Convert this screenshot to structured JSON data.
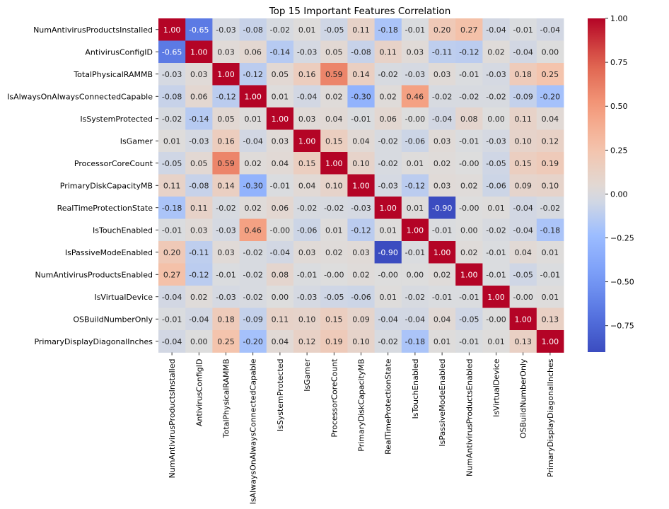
{
  "chart_data": {
    "type": "heatmap",
    "title": "Top 15 Important Features Correlation",
    "colormap": "coolwarm",
    "value_range": [
      -0.9,
      1.0
    ],
    "colorbar_ticks": [
      1.0,
      0.75,
      0.5,
      0.25,
      0.0,
      -0.25,
      -0.5,
      -0.75
    ],
    "colorbar_tick_labels": [
      "1.00",
      "0.75",
      "0.50",
      "0.25",
      "0.00",
      "−0.25",
      "−0.50",
      "−0.75"
    ],
    "labels": [
      "NumAntivirusProductsInstalled",
      "AntivirusConfigID",
      "TotalPhysicalRAMMB",
      "IsAlwaysOnAlwaysConnectedCapable",
      "IsSystemProtected",
      "IsGamer",
      "ProcessorCoreCount",
      "PrimaryDiskCapacityMB",
      "RealTimeProtectionState",
      "IsTouchEnabled",
      "IsPassiveModeEnabled",
      "NumAntivirusProductsEnabled",
      "IsVirtualDevice",
      "OSBuildNumberOnly",
      "PrimaryDisplayDiagonalInches"
    ],
    "matrix": [
      [
        1.0,
        -0.65,
        -0.03,
        -0.08,
        -0.02,
        0.01,
        -0.05,
        0.11,
        -0.18,
        -0.01,
        0.2,
        0.27,
        -0.04,
        -0.01,
        -0.04
      ],
      [
        -0.65,
        1.0,
        0.03,
        0.06,
        -0.14,
        -0.03,
        0.05,
        -0.08,
        0.11,
        0.03,
        -0.11,
        -0.12,
        0.02,
        -0.04,
        0.0
      ],
      [
        -0.03,
        0.03,
        1.0,
        -0.12,
        0.05,
        0.16,
        0.59,
        0.14,
        -0.02,
        -0.03,
        0.03,
        -0.01,
        -0.03,
        0.18,
        0.25
      ],
      [
        -0.08,
        0.06,
        -0.12,
        1.0,
        0.01,
        -0.04,
        0.02,
        -0.3,
        0.02,
        0.46,
        -0.02,
        -0.02,
        -0.02,
        -0.09,
        -0.2
      ],
      [
        -0.02,
        -0.14,
        0.05,
        0.01,
        1.0,
        0.03,
        0.04,
        -0.01,
        0.06,
        -0.0,
        -0.04,
        0.08,
        0.0,
        0.11,
        0.04
      ],
      [
        0.01,
        -0.03,
        0.16,
        -0.04,
        0.03,
        1.0,
        0.15,
        0.04,
        -0.02,
        -0.06,
        0.03,
        -0.01,
        -0.03,
        0.1,
        0.12
      ],
      [
        -0.05,
        0.05,
        0.59,
        0.02,
        0.04,
        0.15,
        1.0,
        0.1,
        -0.02,
        0.01,
        0.02,
        -0.0,
        -0.05,
        0.15,
        0.19
      ],
      [
        0.11,
        -0.08,
        0.14,
        -0.3,
        -0.01,
        0.04,
        0.1,
        1.0,
        -0.03,
        -0.12,
        0.03,
        0.02,
        -0.06,
        0.09,
        0.1
      ],
      [
        -0.18,
        0.11,
        -0.02,
        0.02,
        0.06,
        -0.02,
        -0.02,
        -0.03,
        1.0,
        0.01,
        -0.9,
        -0.0,
        0.01,
        -0.04,
        -0.02
      ],
      [
        -0.01,
        0.03,
        -0.03,
        0.46,
        -0.0,
        -0.06,
        0.01,
        -0.12,
        0.01,
        1.0,
        -0.01,
        0.0,
        -0.02,
        -0.04,
        -0.18
      ],
      [
        0.2,
        -0.11,
        0.03,
        -0.02,
        -0.04,
        0.03,
        0.02,
        0.03,
        -0.9,
        -0.01,
        1.0,
        0.02,
        -0.01,
        0.04,
        0.01
      ],
      [
        0.27,
        -0.12,
        -0.01,
        -0.02,
        0.08,
        -0.01,
        -0.0,
        0.02,
        -0.0,
        0.0,
        0.02,
        1.0,
        -0.01,
        -0.05,
        -0.01
      ],
      [
        -0.04,
        0.02,
        -0.03,
        -0.02,
        0.0,
        -0.03,
        -0.05,
        -0.06,
        0.01,
        -0.02,
        -0.01,
        -0.01,
        1.0,
        -0.0,
        0.01
      ],
      [
        -0.01,
        -0.04,
        0.18,
        -0.09,
        0.11,
        0.1,
        0.15,
        0.09,
        -0.04,
        -0.04,
        0.04,
        -0.05,
        -0.0,
        1.0,
        0.13
      ],
      [
        -0.04,
        0.0,
        0.25,
        -0.2,
        0.04,
        0.12,
        0.19,
        0.1,
        -0.02,
        -0.18,
        0.01,
        -0.01,
        0.01,
        0.13,
        1.0
      ]
    ],
    "cell_labels": [
      [
        "1.00",
        "-0.65",
        "-0.03",
        "-0.08",
        "-0.02",
        "0.01",
        "-0.05",
        "0.11",
        "-0.18",
        "-0.01",
        "0.20",
        "0.27",
        "-0.04",
        "-0.01",
        "-0.04"
      ],
      [
        "-0.65",
        "1.00",
        "0.03",
        "0.06",
        "-0.14",
        "-0.03",
        "0.05",
        "-0.08",
        "0.11",
        "0.03",
        "-0.11",
        "-0.12",
        "0.02",
        "-0.04",
        "0.00"
      ],
      [
        "-0.03",
        "0.03",
        "1.00",
        "-0.12",
        "0.05",
        "0.16",
        "0.59",
        "0.14",
        "-0.02",
        "-0.03",
        "0.03",
        "-0.01",
        "-0.03",
        "0.18",
        "0.25"
      ],
      [
        "-0.08",
        "0.06",
        "-0.12",
        "1.00",
        "0.01",
        "-0.04",
        "0.02",
        "-0.30",
        "0.02",
        "0.46",
        "-0.02",
        "-0.02",
        "-0.02",
        "-0.09",
        "-0.20"
      ],
      [
        "-0.02",
        "-0.14",
        "0.05",
        "0.01",
        "1.00",
        "0.03",
        "0.04",
        "-0.01",
        "0.06",
        "-0.00",
        "-0.04",
        "0.08",
        "0.00",
        "0.11",
        "0.04"
      ],
      [
        "0.01",
        "-0.03",
        "0.16",
        "-0.04",
        "0.03",
        "1.00",
        "0.15",
        "0.04",
        "-0.02",
        "-0.06",
        "0.03",
        "-0.01",
        "-0.03",
        "0.10",
        "0.12"
      ],
      [
        "-0.05",
        "0.05",
        "0.59",
        "0.02",
        "0.04",
        "0.15",
        "1.00",
        "0.10",
        "-0.02",
        "0.01",
        "0.02",
        "-0.00",
        "-0.05",
        "0.15",
        "0.19"
      ],
      [
        "0.11",
        "-0.08",
        "0.14",
        "-0.30",
        "-0.01",
        "0.04",
        "0.10",
        "1.00",
        "-0.03",
        "-0.12",
        "0.03",
        "0.02",
        "-0.06",
        "0.09",
        "0.10"
      ],
      [
        "-0.18",
        "0.11",
        "-0.02",
        "0.02",
        "0.06",
        "-0.02",
        "-0.02",
        "-0.03",
        "1.00",
        "0.01",
        "-0.90",
        "-0.00",
        "0.01",
        "-0.04",
        "-0.02"
      ],
      [
        "-0.01",
        "0.03",
        "-0.03",
        "0.46",
        "-0.00",
        "-0.06",
        "0.01",
        "-0.12",
        "0.01",
        "1.00",
        "-0.01",
        "0.00",
        "-0.02",
        "-0.04",
        "-0.18"
      ],
      [
        "0.20",
        "-0.11",
        "0.03",
        "-0.02",
        "-0.04",
        "0.03",
        "0.02",
        "0.03",
        "-0.90",
        "-0.01",
        "1.00",
        "0.02",
        "-0.01",
        "0.04",
        "0.01"
      ],
      [
        "0.27",
        "-0.12",
        "-0.01",
        "-0.02",
        "0.08",
        "-0.01",
        "-0.00",
        "0.02",
        "-0.00",
        "0.00",
        "0.02",
        "1.00",
        "-0.01",
        "-0.05",
        "-0.01"
      ],
      [
        "-0.04",
        "0.02",
        "-0.03",
        "-0.02",
        "0.00",
        "-0.03",
        "-0.05",
        "-0.06",
        "0.01",
        "-0.02",
        "-0.01",
        "-0.01",
        "1.00",
        "-0.00",
        "0.01"
      ],
      [
        "-0.01",
        "-0.04",
        "0.18",
        "-0.09",
        "0.11",
        "0.10",
        "0.15",
        "0.09",
        "-0.04",
        "-0.04",
        "0.04",
        "-0.05",
        "-0.00",
        "1.00",
        "0.13"
      ],
      [
        "-0.04",
        "0.00",
        "0.25",
        "-0.20",
        "0.04",
        "0.12",
        "0.19",
        "0.10",
        "-0.02",
        "-0.18",
        "0.01",
        "-0.01",
        "0.01",
        "0.13",
        "1.00"
      ]
    ]
  }
}
